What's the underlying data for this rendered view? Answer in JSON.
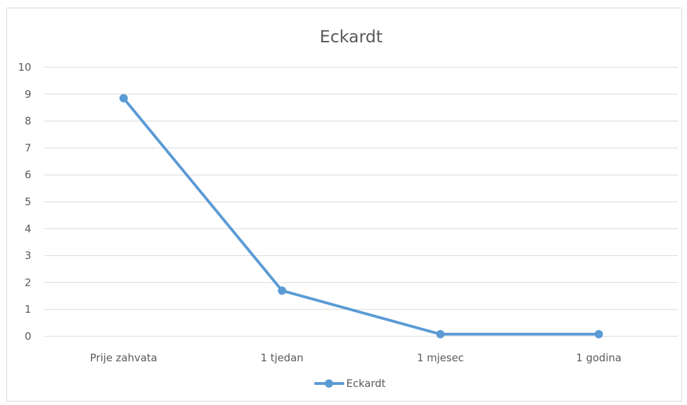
{
  "chart_data": {
    "type": "line",
    "title": "Eckardt",
    "categories": [
      "Prije zahvata",
      "1 tjedan",
      "1 mjesec",
      "1 godina"
    ],
    "series": [
      {
        "name": "Eckardt",
        "values": [
          8.85,
          1.7,
          0.08,
          0.08
        ],
        "color": "#5b9bd5"
      }
    ],
    "ylim": [
      0,
      10
    ],
    "yticks": [
      0,
      1,
      2,
      3,
      4,
      5,
      6,
      7,
      8,
      9,
      10
    ],
    "grid": true,
    "legend": "bottom",
    "xlabel": "",
    "ylabel": ""
  }
}
